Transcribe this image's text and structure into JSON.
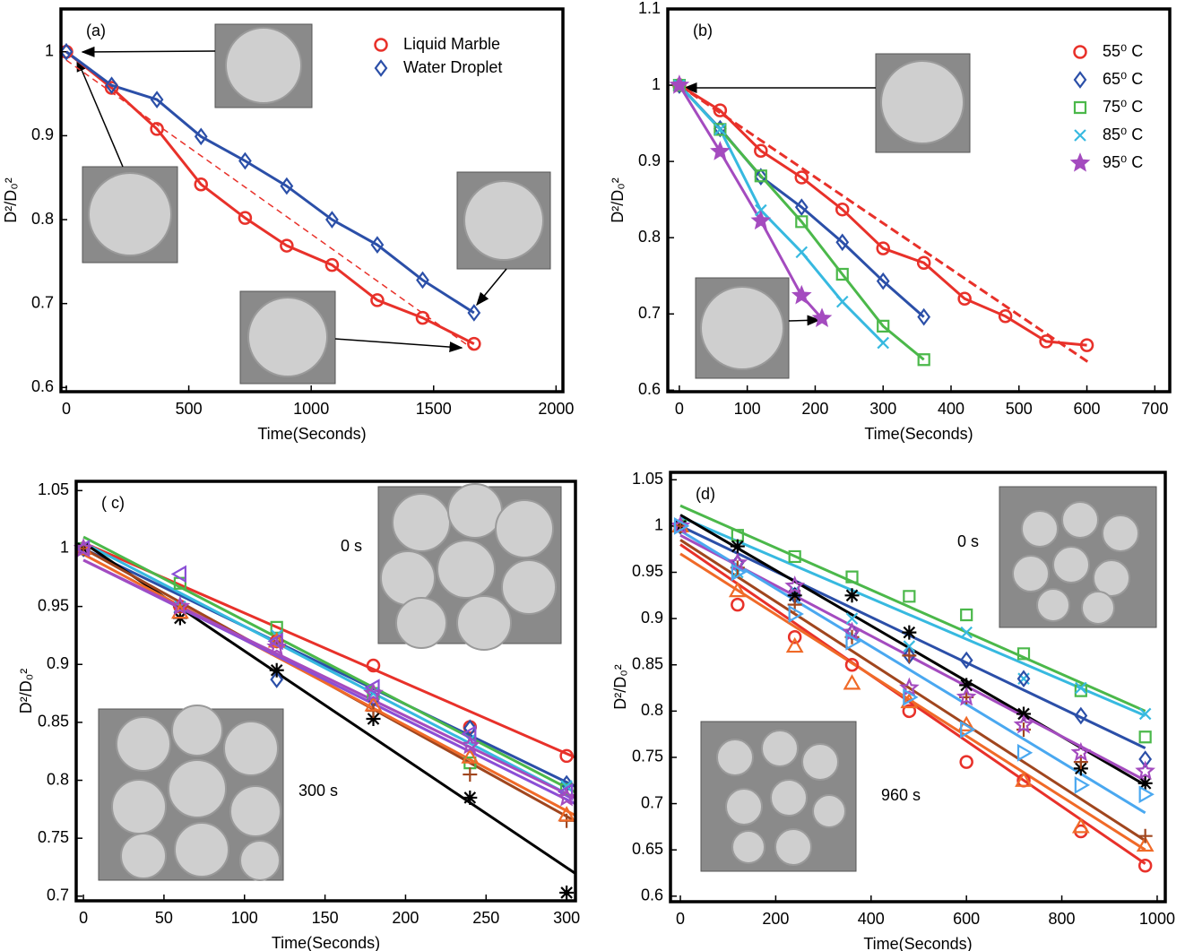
{
  "chart_data": [
    {
      "type": "line",
      "label": "(a)",
      "xlabel": "Time(Seconds)",
      "ylabel": "D²/D₀²",
      "xlim": [
        -22,
        2028
      ],
      "ylim": [
        0.595,
        1.051
      ],
      "xticks": [
        0,
        500,
        1000,
        1500,
        2000
      ],
      "yticks": [
        0.6,
        0.7,
        0.8,
        0.9,
        1
      ],
      "legend": "upper right",
      "series": [
        {
          "name": "Liquid Marble",
          "color": "#e8312a",
          "marker": "circle",
          "x": [
            0,
            185,
            370,
            550,
            730,
            900,
            1085,
            1270,
            1455,
            1665
          ],
          "values": [
            1,
            0.957,
            0.908,
            0.842,
            0.802,
            0.769,
            0.746,
            0.704,
            0.683,
            0.652
          ]
        },
        {
          "name": "Water Droplet",
          "color": "#2b4fa8",
          "marker": "diamond",
          "x": [
            0,
            185,
            370,
            550,
            730,
            900,
            1085,
            1270,
            1455,
            1665
          ],
          "values": [
            1,
            0.96,
            0.943,
            0.899,
            0.87,
            0.84,
            0.8,
            0.77,
            0.728,
            0.689
          ]
        }
      ],
      "fit_line": {
        "color": "#e8312a",
        "x": [
          0,
          1665
        ],
        "values": [
          0.99,
          0.645
        ]
      }
    },
    {
      "type": "line",
      "label": "(b)",
      "xlabel": "Time(Seconds)",
      "ylabel": "D²/D₀²",
      "xlim": [
        -17,
        722
      ],
      "ylim": [
        0.598,
        1.1
      ],
      "xticks": [
        0,
        100,
        200,
        300,
        400,
        500,
        600,
        700
      ],
      "yticks": [
        0.6,
        0.7,
        0.8,
        0.9,
        1,
        1.1
      ],
      "legend": "upper right",
      "series": [
        {
          "name": "55⁰ C",
          "color": "#e8312a",
          "marker": "circle",
          "x": [
            0,
            60,
            120,
            180,
            240,
            300,
            360,
            420,
            480,
            540,
            600
          ],
          "values": [
            1,
            0.967,
            0.914,
            0.879,
            0.837,
            0.786,
            0.767,
            0.72,
            0.697,
            0.664,
            0.659
          ]
        },
        {
          "name": "65⁰ C",
          "color": "#2b4fa8",
          "marker": "diamond",
          "x": [
            0,
            60,
            120,
            180,
            240,
            300,
            360
          ],
          "values": [
            1,
            0.943,
            0.88,
            0.84,
            0.794,
            0.743,
            0.696
          ]
        },
        {
          "name": "75⁰ C",
          "color": "#4bb84a",
          "marker": "square",
          "x": [
            0,
            60,
            120,
            180,
            240,
            300,
            360
          ],
          "values": [
            1,
            0.942,
            0.881,
            0.821,
            0.752,
            0.684,
            0.64
          ]
        },
        {
          "name": "85⁰ C",
          "color": "#37b9e0",
          "marker": "x",
          "x": [
            0,
            60,
            120,
            180,
            240,
            300
          ],
          "values": [
            1,
            0.942,
            0.836,
            0.781,
            0.716,
            0.662
          ]
        },
        {
          "name": "95⁰ C",
          "color": "#a44bbf",
          "marker": "star",
          "x": [
            0,
            60,
            120,
            180,
            210
          ],
          "values": [
            1,
            0.913,
            0.822,
            0.724,
            0.694
          ]
        }
      ],
      "fit_line": {
        "color": "#e8312a",
        "x": [
          0,
          605
        ],
        "values": [
          1,
          0.635
        ]
      }
    },
    {
      "type": "scatter",
      "label": "( c)",
      "xlabel": "Time(Seconds)",
      "ylabel": "D²/D₀²",
      "xlim": [
        -4.5,
        305.5
      ],
      "ylim": [
        0.696,
        1.058
      ],
      "xticks": [
        0,
        50,
        100,
        150,
        200,
        250,
        300
      ],
      "yticks": [
        0.7,
        0.75,
        0.8,
        0.85,
        0.9,
        0.95,
        1,
        1.05
      ],
      "annotations": [
        "0 s",
        "300 s"
      ],
      "x": [
        0,
        60,
        120,
        180,
        240,
        300
      ],
      "fit_x": [
        0,
        305
      ],
      "series": [
        {
          "color": "#e8312a",
          "marker": "circle",
          "values": [
            1,
            0.95,
            0.92,
            0.899,
            0.846,
            0.821
          ],
          "fit": [
            1.005,
            0.82
          ]
        },
        {
          "color": "#2b4fa8",
          "marker": "diamond",
          "values": [
            1,
            0.945,
            0.887,
            0.87,
            0.845,
            0.797
          ],
          "fit": [
            1.0,
            0.795
          ]
        },
        {
          "color": "#4bb84a",
          "marker": "square",
          "values": [
            1,
            0.97,
            0.932,
            0.875,
            0.815,
            0.792
          ],
          "fit": [
            1.01,
            0.79
          ]
        },
        {
          "color": "#37b9e0",
          "marker": "x",
          "values": [
            1,
            0.95,
            0.925,
            0.875,
            0.835,
            0.795
          ],
          "fit": [
            1.005,
            0.785
          ]
        },
        {
          "color": "#000000",
          "marker": "asterisk",
          "values": [
            1,
            0.94,
            0.895,
            0.853,
            0.785,
            0.703
          ],
          "fit": [
            1.005,
            0.72
          ]
        },
        {
          "color": "#a0461e",
          "marker": "plus",
          "values": [
            1,
            0.95,
            0.92,
            0.86,
            0.805,
            0.765
          ],
          "fit": [
            1.0,
            0.765
          ]
        },
        {
          "color": "#f06a28",
          "marker": "triangle",
          "values": [
            1,
            0.945,
            0.92,
            0.865,
            0.82,
            0.77
          ],
          "fit": [
            0.995,
            0.77
          ]
        },
        {
          "color": "#8a4fd6",
          "marker": "tri-left",
          "values": [
            1,
            0.978,
            0.92,
            0.88,
            0.84,
            0.79
          ],
          "fit": [
            0.99,
            0.78
          ]
        },
        {
          "color": "#a44bbf",
          "marker": "star-open",
          "values": [
            1,
            0.95,
            0.915,
            0.875,
            0.83,
            0.785
          ],
          "fit": [
            0.99,
            0.785
          ]
        }
      ]
    },
    {
      "type": "scatter",
      "label": "(d)",
      "xlabel": "Time(Seconds)",
      "ylabel": "D²/D₀²",
      "xlim": [
        -20.7,
        1017
      ],
      "ylim": [
        0.594,
        1.058
      ],
      "xticks": [
        0,
        200,
        400,
        600,
        800,
        1000
      ],
      "yticks": [
        0.6,
        0.65,
        0.7,
        0.75,
        0.8,
        0.85,
        0.9,
        0.95,
        1,
        1.05
      ],
      "annotations": [
        "0 s",
        "960 s"
      ],
      "x": [
        0,
        120,
        240,
        360,
        480,
        600,
        720,
        840,
        975
      ],
      "fit_x": [
        0,
        975
      ],
      "series": [
        {
          "color": "#e8312a",
          "marker": "circle",
          "values": [
            1,
            0.915,
            0.88,
            0.85,
            0.8,
            0.745,
            0.725,
            0.67,
            0.633
          ],
          "fit": [
            0.98,
            0.635
          ]
        },
        {
          "color": "#4bb84a",
          "marker": "square",
          "values": [
            1,
            0.99,
            0.967,
            0.945,
            0.924,
            0.904,
            0.862,
            0.822,
            0.772
          ],
          "fit": [
            1.022,
            0.8
          ]
        },
        {
          "color": "#37b9e0",
          "marker": "x",
          "values": [
            1,
            0.95,
            0.93,
            0.9,
            0.87,
            0.885,
            0.835,
            0.825,
            0.797
          ],
          "fit": [
            1.01,
            0.795
          ]
        },
        {
          "color": "#2b4fa8",
          "marker": "diamond",
          "values": [
            1,
            0.96,
            0.925,
            0.885,
            0.86,
            0.855,
            0.835,
            0.795,
            0.748
          ],
          "fit": [
            1.0,
            0.76
          ]
        },
        {
          "color": "#000000",
          "marker": "asterisk",
          "values": [
            1,
            0.978,
            0.925,
            0.925,
            0.885,
            0.828,
            0.797,
            0.738,
            0.722
          ],
          "fit": [
            1.012,
            0.72
          ]
        },
        {
          "color": "#f06a28",
          "marker": "triangle",
          "values": [
            1,
            0.93,
            0.87,
            0.83,
            0.81,
            0.785,
            0.725,
            0.675,
            0.655
          ],
          "fit": [
            0.97,
            0.65
          ]
        },
        {
          "color": "#a0461e",
          "marker": "plus",
          "values": [
            1,
            0.955,
            0.915,
            0.88,
            0.86,
            0.815,
            0.78,
            0.745,
            0.665
          ],
          "fit": [
            0.985,
            0.66
          ]
        },
        {
          "color": "#a44bbf",
          "marker": "star-open",
          "values": [
            1,
            0.96,
            0.935,
            0.885,
            0.825,
            0.815,
            0.785,
            0.755,
            0.735
          ],
          "fit": [
            0.99,
            0.725
          ]
        },
        {
          "color": "#4aa8f0",
          "marker": "tri-right",
          "values": [
            1,
            0.95,
            0.905,
            0.875,
            0.815,
            0.78,
            0.755,
            0.72,
            0.71
          ],
          "fit": [
            0.995,
            0.69
          ]
        }
      ]
    }
  ]
}
